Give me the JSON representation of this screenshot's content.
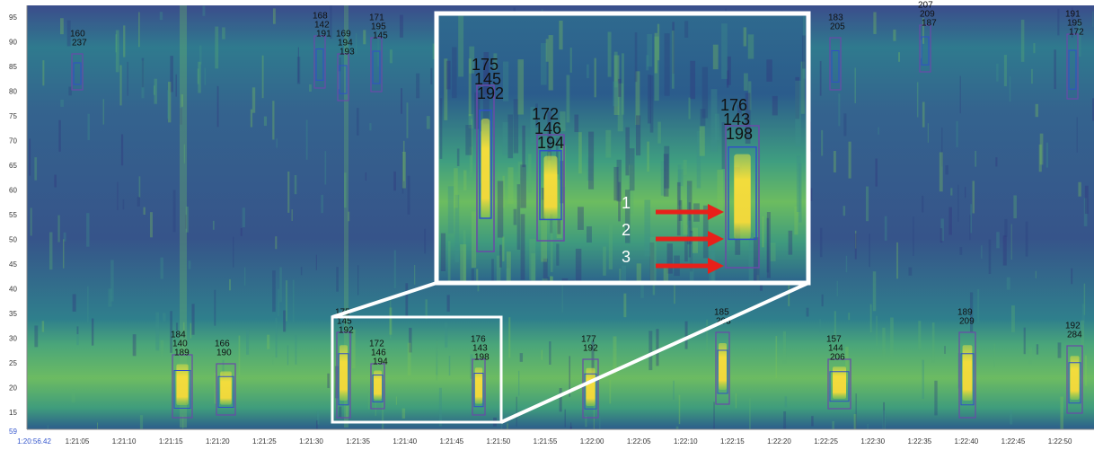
{
  "y_axis": {
    "labels": [
      "95",
      "90",
      "85",
      "80",
      "75",
      "70",
      "65",
      "60",
      "55",
      "50",
      "45",
      "40",
      "35",
      "30",
      "25",
      "20",
      "15"
    ],
    "bottom_label": "59"
  },
  "x_axis": {
    "labels": [
      "1:20:56.42",
      "1:21:05",
      "1:21:10",
      "1:21:15",
      "1:21:20",
      "1:21:25",
      "1:21:30",
      "1:21:35",
      "1:21:40",
      "1:21:45",
      "1:21:50",
      "1:21:55",
      "1:22:00",
      "1:22:05",
      "1:22:10",
      "1:22:15",
      "1:22:20",
      "1:22:25",
      "1:22:30",
      "1:22:35",
      "1:22:40",
      "1:22:45",
      "1:22:50"
    ]
  },
  "detections": [
    {
      "labels": [
        "160",
        "237"
      ]
    },
    {
      "labels": [
        "168",
        "142",
        "191"
      ]
    },
    {
      "labels": [
        "169",
        "194",
        "193"
      ]
    },
    {
      "labels": [
        "171",
        "195",
        "145"
      ]
    },
    {
      "labels": [
        "183",
        "205"
      ]
    },
    {
      "labels": [
        "207",
        "209",
        "187"
      ]
    },
    {
      "labels": [
        "191",
        "195",
        "172"
      ]
    },
    {
      "labels": [
        "184",
        "140",
        "189"
      ]
    },
    {
      "labels": [
        "166",
        "190"
      ]
    },
    {
      "labels": [
        "175",
        "145",
        "192"
      ]
    },
    {
      "labels": [
        "172",
        "146",
        "194"
      ]
    },
    {
      "labels": [
        "176",
        "143",
        "198"
      ]
    },
    {
      "labels": [
        "177",
        "192"
      ]
    },
    {
      "labels": [
        "185",
        "203"
      ]
    },
    {
      "labels": [
        "157",
        "144",
        "206"
      ]
    },
    {
      "labels": [
        "189",
        "209"
      ]
    },
    {
      "labels": [
        "192",
        "284"
      ]
    }
  ],
  "inset": {
    "detections": [
      {
        "labels": [
          "175",
          "145",
          "192"
        ]
      },
      {
        "labels": [
          "172",
          "146",
          "194"
        ]
      },
      {
        "labels": [
          "176",
          "143",
          "198"
        ]
      }
    ],
    "arrows": [
      "1",
      "2",
      "3"
    ]
  }
}
